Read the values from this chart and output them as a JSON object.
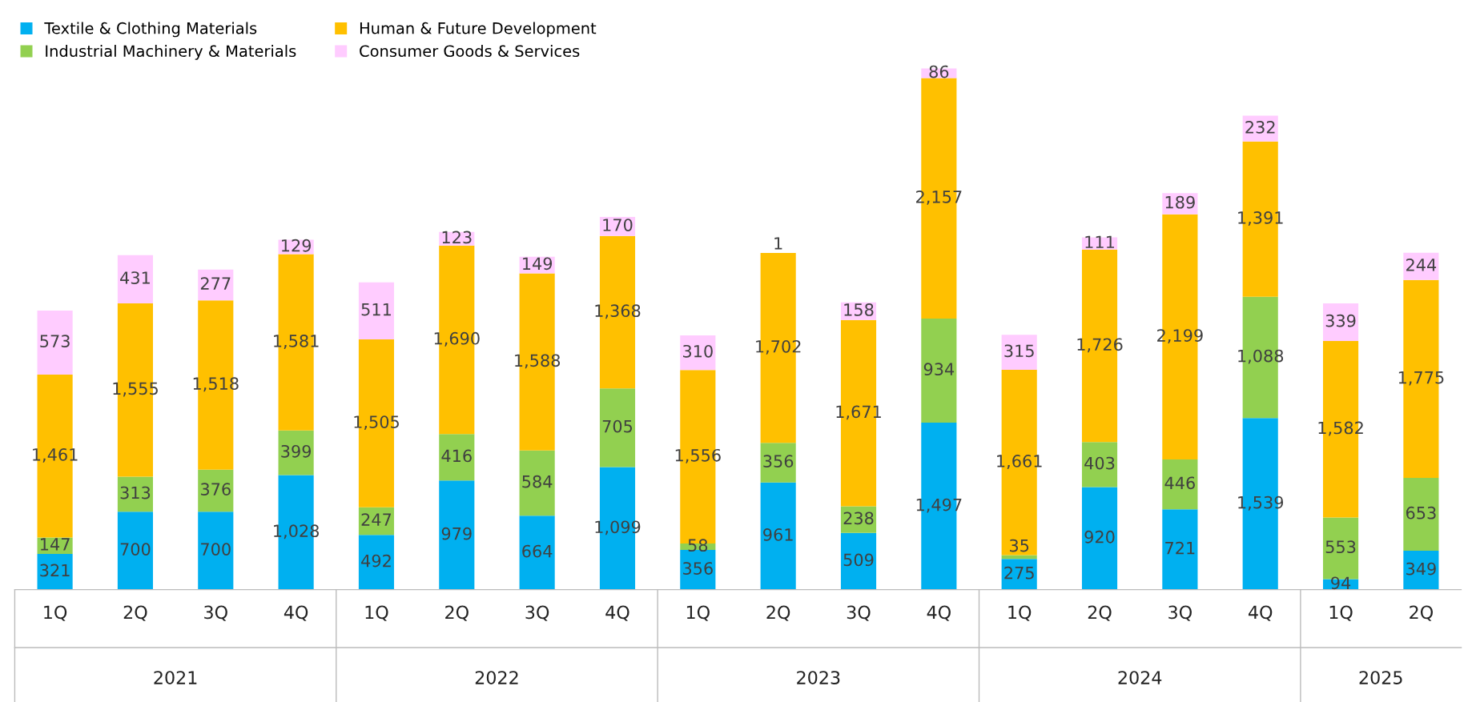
{
  "chart_data": {
    "type": "bar",
    "stacked": true,
    "legend": "top left",
    "grid": false,
    "categories": [
      "1Q",
      "2Q",
      "3Q",
      "4Q",
      "1Q",
      "2Q",
      "3Q",
      "4Q",
      "1Q",
      "2Q",
      "3Q",
      "4Q",
      "1Q",
      "2Q",
      "3Q",
      "4Q",
      "1Q",
      "2Q"
    ],
    "annotations": [
      "2021",
      "2022",
      "2023",
      "2024",
      "2025"
    ],
    "series": [
      {
        "name": "Textile & Clothing Materials",
        "color": "#00b0f0",
        "values": [
          321,
          700,
          700,
          1028,
          492,
          979,
          664,
          1099,
          356,
          961,
          509,
          1497,
          275,
          920,
          721,
          1539,
          94,
          349
        ],
        "value_labels": [
          "321",
          "700",
          "700",
          "1,028",
          "492",
          "979",
          "664",
          "1,099",
          "356",
          "961",
          "509",
          "1,497",
          "275",
          "920",
          "721",
          "1,539",
          "94",
          "349"
        ]
      },
      {
        "name": "Industrial Machinery & Materials",
        "color": "#92d050",
        "values": [
          147,
          313,
          376,
          399,
          247,
          416,
          584,
          705,
          58,
          356,
          238,
          934,
          35,
          403,
          446,
          1088,
          553,
          653
        ],
        "value_labels": [
          "147",
          "313",
          "376",
          "399",
          "247",
          "416",
          "584",
          "705",
          "58",
          "356",
          "238",
          "934",
          "35",
          "403",
          "446",
          "1,088",
          "553",
          "653"
        ]
      },
      {
        "name": "Human & Future Development",
        "color": "#ffc000",
        "values": [
          1461,
          1555,
          1518,
          1581,
          1505,
          1690,
          1588,
          1368,
          1556,
          1702,
          1671,
          2157,
          1661,
          1726,
          2199,
          1391,
          1582,
          1775
        ],
        "value_labels": [
          "1,461",
          "1,555",
          "1,518",
          "1,581",
          "1,505",
          "1,690",
          "1,588",
          "1,368",
          "1,556",
          "1,702",
          "1,671",
          "2,157",
          "1,661",
          "1,726",
          "2,199",
          "1,391",
          "1,582",
          "1,775"
        ]
      },
      {
        "name": "Consumer Goods & Services",
        "color": "#ffccff",
        "values": [
          573,
          431,
          277,
          129,
          511,
          123,
          149,
          170,
          310,
          1,
          158,
          86,
          315,
          111,
          189,
          232,
          339,
          244
        ],
        "value_labels": [
          "573",
          "431",
          "277",
          "129",
          "511",
          "123",
          "149",
          "170",
          "310",
          "1",
          "158",
          "86",
          "315",
          "111",
          "189",
          "232",
          "339",
          "244"
        ]
      }
    ]
  }
}
